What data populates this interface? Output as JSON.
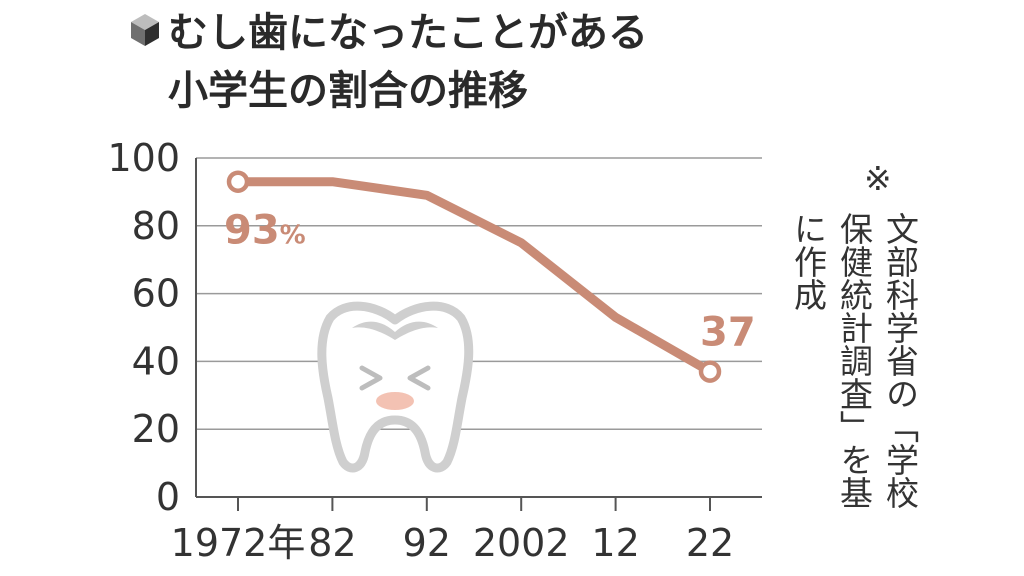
{
  "chart_data": {
    "type": "line",
    "title": "むし歯になったことがある",
    "subtitle": "小学生の割合の推移",
    "x": [
      "1972",
      "1982",
      "1992",
      "2002",
      "2012",
      "2022"
    ],
    "x_tick_labels": [
      "1972年",
      "82",
      "92",
      "2002",
      "12",
      "22"
    ],
    "series": [
      {
        "values": [
          93,
          93,
          89,
          75,
          53,
          37
        ]
      }
    ],
    "ylim": [
      0,
      100
    ],
    "yticks": [
      "0",
      "20",
      "40",
      "60",
      "80",
      "100"
    ],
    "grid": true,
    "start_label": "93",
    "start_label_unit": "%",
    "end_label": "37",
    "line_color": "#c98b76",
    "note_marker": "※",
    "note_col1": "文部科学省の「学校",
    "note_col2": "保健統計調査」を基",
    "note_col3": "に作成"
  }
}
